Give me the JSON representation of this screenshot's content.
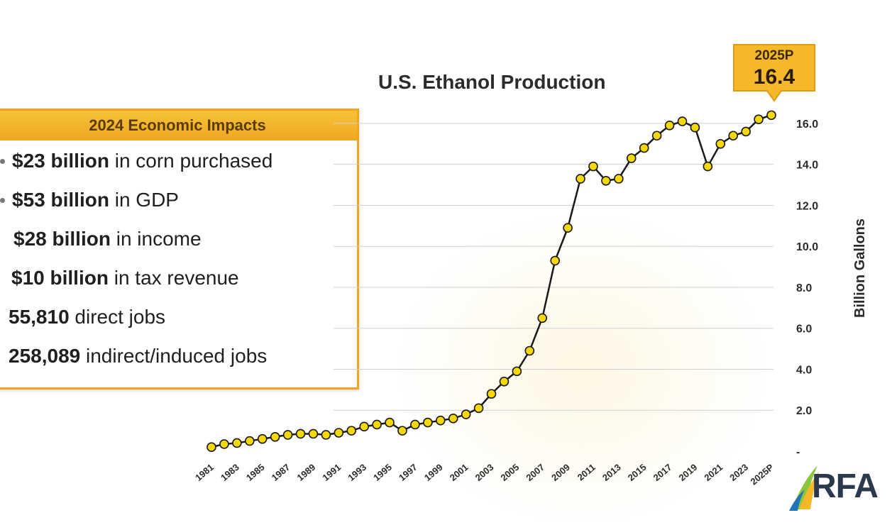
{
  "impacts": {
    "header": "2024 Economic Impacts",
    "items": [
      {
        "bold": "$23 billion",
        "rest": " in corn purchased"
      },
      {
        "bold": "$53 billion",
        "rest": " in GDP"
      },
      {
        "bold": "$28 billion",
        "rest": " in income"
      },
      {
        "bold": "$10 billion",
        "rest": " in tax revenue"
      },
      {
        "bold": "55,810",
        "rest": " direct jobs"
      },
      {
        "bold": "258,089",
        "rest": " indirect/induced jobs"
      }
    ]
  },
  "callout": {
    "label": "2025P",
    "value": "16.4"
  },
  "logo": {
    "text": "RFA"
  },
  "colors": {
    "accent": "#f5b82a",
    "marker": "#f5d80a",
    "line": "#1a1a1a",
    "box_border": "#f2a41c"
  },
  "chart_data": {
    "type": "line",
    "title": "U.S. Ethanol Production",
    "xlabel": "",
    "ylabel": "Billion Gallons",
    "ylim": [
      0,
      17.5
    ],
    "yticks": [
      {
        "v": 0,
        "label": "-"
      },
      {
        "v": 2,
        "label": "2.0"
      },
      {
        "v": 4,
        "label": "4.0"
      },
      {
        "v": 6,
        "label": "6.0"
      },
      {
        "v": 8,
        "label": "8.0"
      },
      {
        "v": 10,
        "label": "10.0"
      },
      {
        "v": 12,
        "label": "12.0"
      },
      {
        "v": 14,
        "label": "14.0"
      },
      {
        "v": 16,
        "label": "16.0"
      }
    ],
    "categories": [
      "1981",
      "1982",
      "1983",
      "1984",
      "1985",
      "1986",
      "1987",
      "1988",
      "1989",
      "1990",
      "1991",
      "1992",
      "1993",
      "1994",
      "1995",
      "1996",
      "1997",
      "1998",
      "1999",
      "2000",
      "2001",
      "2002",
      "2003",
      "2004",
      "2005",
      "2006",
      "2007",
      "2008",
      "2009",
      "2010",
      "2011",
      "2012",
      "2013",
      "2014",
      "2015",
      "2016",
      "2017",
      "2018",
      "2019",
      "2020",
      "2021",
      "2022",
      "2023",
      "2024",
      "2025P"
    ],
    "xtick_labels": [
      "1981",
      "1983",
      "1985",
      "1987",
      "1989",
      "1991",
      "1993",
      "1995",
      "1997",
      "1999",
      "2001",
      "2003",
      "2005",
      "2007",
      "2009",
      "2011",
      "2013",
      "2015",
      "2017",
      "2019",
      "2021",
      "2023",
      "2025P"
    ],
    "values": [
      0.2,
      0.35,
      0.4,
      0.5,
      0.6,
      0.7,
      0.8,
      0.85,
      0.85,
      0.8,
      0.9,
      1.0,
      1.2,
      1.3,
      1.4,
      1.0,
      1.3,
      1.4,
      1.5,
      1.6,
      1.8,
      2.1,
      2.8,
      3.4,
      3.9,
      4.9,
      6.5,
      9.3,
      10.9,
      13.3,
      13.9,
      13.2,
      13.3,
      14.3,
      14.8,
      15.4,
      15.9,
      16.1,
      15.8,
      13.9,
      15.0,
      15.4,
      15.6,
      16.2,
      16.4
    ],
    "grid": true
  }
}
